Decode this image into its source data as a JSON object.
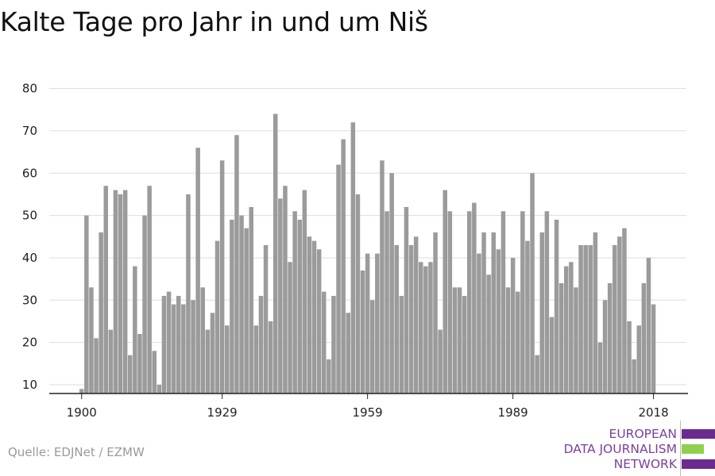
{
  "header": {
    "title": "Kalte Tage pro Jahr in und um Niš"
  },
  "footer": {
    "source": "Quelle: EDJNet / EZMW"
  },
  "logo": {
    "lines": [
      "EUROPEAN",
      "DATA JOURNALISM",
      "NETWORK"
    ],
    "colors": {
      "text": "#7a3f9e",
      "purple": "#6a2b8f",
      "green": "#8fd14f"
    }
  },
  "chart_data": {
    "type": "bar",
    "title": "Kalte Tage pro Jahr in und um Niš",
    "xlabel": "",
    "ylabel": "",
    "x_start": 1900,
    "xticks": [
      1900,
      1929,
      1959,
      1989,
      2018
    ],
    "yticks": [
      10,
      20,
      30,
      40,
      50,
      60,
      70,
      80
    ],
    "ylim": [
      8,
      80
    ],
    "grid": true,
    "bar_color": "#9b9b9b",
    "x": [
      1900,
      1901,
      1902,
      1903,
      1904,
      1905,
      1906,
      1907,
      1908,
      1909,
      1910,
      1911,
      1912,
      1913,
      1914,
      1915,
      1916,
      1917,
      1918,
      1919,
      1920,
      1921,
      1922,
      1923,
      1924,
      1925,
      1926,
      1927,
      1928,
      1929,
      1930,
      1931,
      1932,
      1933,
      1934,
      1935,
      1936,
      1937,
      1938,
      1939,
      1940,
      1941,
      1942,
      1943,
      1944,
      1945,
      1946,
      1947,
      1948,
      1949,
      1950,
      1951,
      1952,
      1953,
      1954,
      1955,
      1956,
      1957,
      1958,
      1959,
      1960,
      1961,
      1962,
      1963,
      1964,
      1965,
      1966,
      1967,
      1968,
      1969,
      1970,
      1971,
      1972,
      1973,
      1974,
      1975,
      1976,
      1977,
      1978,
      1979,
      1980,
      1981,
      1982,
      1983,
      1984,
      1985,
      1986,
      1987,
      1988,
      1989,
      1990,
      1991,
      1992,
      1993,
      1994,
      1995,
      1996,
      1997,
      1998,
      1999,
      2000,
      2001,
      2002,
      2003,
      2004,
      2005,
      2006,
      2007,
      2008,
      2009,
      2010,
      2011,
      2012,
      2013,
      2014,
      2015,
      2016,
      2017,
      2018
    ],
    "values": [
      9,
      50,
      33,
      21,
      46,
      57,
      23,
      56,
      55,
      56,
      17,
      38,
      22,
      50,
      57,
      18,
      10,
      31,
      32,
      29,
      31,
      29,
      55,
      30,
      66,
      33,
      23,
      27,
      44,
      63,
      24,
      49,
      69,
      50,
      47,
      52,
      24,
      31,
      43,
      25,
      74,
      54,
      57,
      39,
      51,
      49,
      56,
      45,
      44,
      42,
      32,
      16,
      31,
      62,
      68,
      27,
      72,
      55,
      37,
      41,
      30,
      41,
      63,
      51,
      60,
      43,
      31,
      52,
      43,
      45,
      39,
      38,
      39,
      46,
      23,
      56,
      51,
      33,
      33,
      31,
      51,
      53,
      41,
      46,
      36,
      46,
      42,
      51,
      33,
      40,
      32,
      51,
      44,
      60,
      17,
      46,
      51,
      26,
      49,
      34,
      38,
      39,
      33,
      43,
      43,
      43,
      46,
      20,
      30,
      34,
      43,
      45,
      47,
      25,
      16,
      24,
      34,
      40,
      29
    ]
  }
}
